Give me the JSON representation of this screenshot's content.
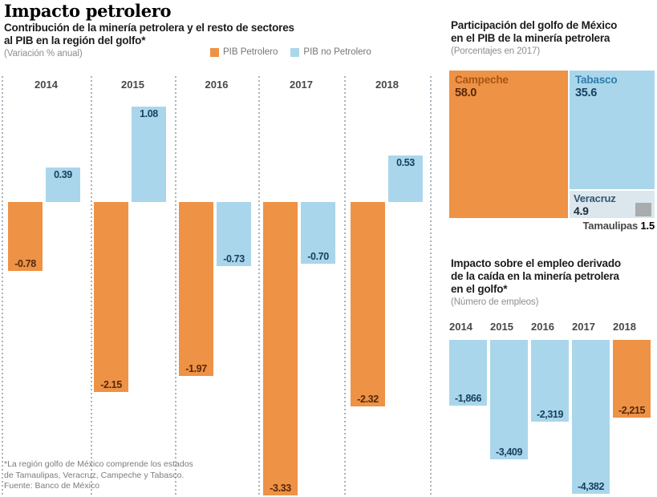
{
  "header": {
    "title": "Impacto petrolero",
    "left_chart": {
      "subtitle_lines": [
        "Contribución de la minería petrolera y el resto de sectores",
        "al PIB en la región del golfo*"
      ],
      "unit": "(Variación % anual)"
    },
    "legend": [
      {
        "name": "pib-petrolero",
        "label": "PIB Petrolero",
        "color": "#ee9245"
      },
      {
        "name": "pib-no-petrolero",
        "label": "PIB no Petrolero",
        "color": "#aad6eb"
      }
    ]
  },
  "panels": {
    "treemap": {
      "title_lines": [
        "Participación del golfo de México",
        "en el PIB de la minería petrolera"
      ],
      "unit": "(Porcentajes en 2017)"
    },
    "employment": {
      "title_lines": [
        "Impacto sobre el empleo derivado",
        "de la caída en la minería petrolera",
        "en el golfo*"
      ],
      "unit": "(Número de empleos)"
    }
  },
  "footnote_lines": [
    "*La región golfo de México comprende los estados",
    "de Tamaulipas, Veracruz, Campeche y Tabasco.",
    "Fuente: Banco de México"
  ],
  "colors": {
    "orange": "#ee9245",
    "blue": "#aad6eb",
    "veracruz_bg": "#dce7ed",
    "tamaulipas_gray": "#a9abad",
    "label_on_orange": "#57280b",
    "label_on_blue": "#173f5f",
    "grid_dots": "#a9b3bd"
  },
  "chart_data": [
    {
      "id": "pib_golfo",
      "type": "bar",
      "title": "Contribución de la minería petrolera y el resto de sectores al PIB en la región del golfo*",
      "ylabel": "Variación % anual",
      "categories": [
        "2014",
        "2015",
        "2016",
        "2017",
        "2018"
      ],
      "series": [
        {
          "name": "PIB Petrolero",
          "color": "#ee9245",
          "values": [
            -0.78,
            -2.15,
            -1.97,
            -3.33,
            -2.32
          ],
          "labels": [
            "-0.78",
            "-2.15",
            "-1.97",
            "-3.33",
            "-2.32"
          ]
        },
        {
          "name": "PIB no Petrolero",
          "color": "#aad6eb",
          "values": [
            0.39,
            1.08,
            -0.73,
            -0.7,
            0.53
          ],
          "labels": [
            "0.39",
            "1.08",
            "-0.73",
            "-0.70",
            "0.53"
          ]
        }
      ],
      "ylim": [
        -3.4,
        1.2
      ],
      "grid": "dotted vertical separators between years",
      "legend_position": "top-right of subtitle"
    },
    {
      "id": "participacion_golfo_pib_mineria",
      "type": "treemap",
      "title": "Participación del golfo de México en el PIB de la minería petrolera",
      "unit": "Porcentajes en 2017",
      "items": [
        {
          "name": "Campeche",
          "value": 58.0,
          "label": "58.0",
          "color": "#ee9245"
        },
        {
          "name": "Tabasco",
          "value": 35.6,
          "label": "35.6",
          "color": "#aad6eb"
        },
        {
          "name": "Veracruz",
          "value": 4.9,
          "label": "4.9",
          "color": "#dce7ed"
        },
        {
          "name": "Tamaulipas",
          "value": 1.5,
          "label": "1.5",
          "color": "#a9abad"
        }
      ]
    },
    {
      "id": "empleo_golfo",
      "type": "bar",
      "title": "Impacto sobre el empleo derivado de la caída en la minería petrolera en el golfo*",
      "unit": "Número de empleos",
      "categories": [
        "2014",
        "2015",
        "2016",
        "2017",
        "2018"
      ],
      "values": [
        -1866,
        -3409,
        -2319,
        -4382,
        -2215
      ],
      "labels": [
        "-1,866",
        "-3,409",
        "-2,319",
        "-4,382",
        "-2,215"
      ],
      "colors_by_bar": [
        "#aad6eb",
        "#aad6eb",
        "#aad6eb",
        "#aad6eb",
        "#ee9245"
      ]
    }
  ]
}
